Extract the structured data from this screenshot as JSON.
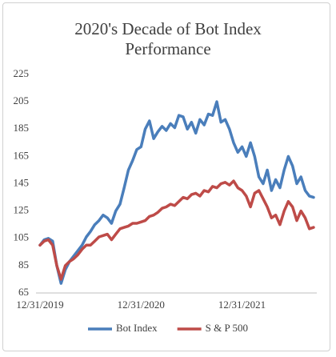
{
  "chart_data": {
    "type": "line",
    "title": "2020's Decade of Bot Index Performance",
    "categories": [
      "12/31/2019",
      null,
      null,
      null,
      null,
      null,
      null,
      null,
      null,
      null,
      null,
      null,
      null,
      null,
      null,
      null,
      null,
      null,
      null,
      null,
      null,
      null,
      null,
      null,
      "12/31/2020",
      null,
      null,
      null,
      null,
      null,
      null,
      null,
      null,
      null,
      null,
      null,
      null,
      null,
      null,
      null,
      null,
      null,
      null,
      null,
      null,
      null,
      null,
      null,
      "12/31/2021",
      null,
      null,
      null,
      null,
      null,
      null,
      null,
      null,
      null,
      null,
      null,
      null,
      null,
      null,
      null,
      null,
      null
    ],
    "series": [
      {
        "name": "Bot Index",
        "color": "#4a7ebb",
        "values": [
          100,
          104,
          105,
          103,
          85,
          72,
          82,
          88,
          92,
          96,
          100,
          106,
          110,
          115,
          118,
          122,
          120,
          116,
          125,
          130,
          142,
          155,
          162,
          170,
          172,
          185,
          191,
          178,
          183,
          187,
          184,
          189,
          186,
          195,
          194,
          185,
          190,
          182,
          192,
          188,
          196,
          195,
          205,
          190,
          192,
          185,
          175,
          168,
          172,
          165,
          175,
          165,
          150,
          145,
          155,
          140,
          148,
          142,
          155,
          165,
          158,
          145,
          150,
          140,
          136,
          135
        ]
      },
      {
        "name": "S & P 500",
        "color": "#be4b48",
        "values": [
          100,
          103,
          104,
          100,
          85,
          75,
          85,
          88,
          90,
          93,
          97,
          100,
          100,
          103,
          106,
          107,
          108,
          104,
          108,
          112,
          113,
          114,
          116,
          116,
          117,
          118,
          121,
          122,
          124,
          127,
          128,
          130,
          129,
          132,
          135,
          134,
          137,
          138,
          136,
          140,
          139,
          143,
          142,
          145,
          146,
          144,
          147,
          142,
          140,
          136,
          128,
          138,
          140,
          134,
          128,
          120,
          122,
          115,
          125,
          132,
          128,
          118,
          125,
          120,
          112,
          113
        ]
      }
    ],
    "ylim": [
      65,
      225
    ],
    "yticks": [
      65,
      85,
      105,
      125,
      145,
      165,
      185,
      205,
      225
    ],
    "grid": false,
    "legend": "bottom"
  }
}
